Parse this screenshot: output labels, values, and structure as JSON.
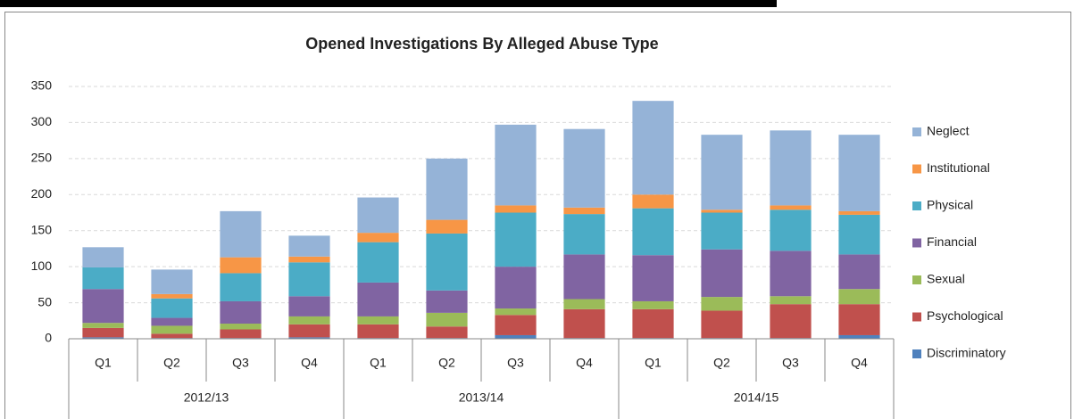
{
  "chart_data": {
    "type": "stacked-bar",
    "title": "Opened Investigations By Alleged  Abuse Type",
    "categories": [
      "Q1",
      "Q2",
      "Q3",
      "Q4",
      "Q1",
      "Q2",
      "Q3",
      "Q4",
      "Q1",
      "Q2",
      "Q3",
      "Q4"
    ],
    "groups": [
      "2012/13",
      "2013/14",
      "2014/15"
    ],
    "series": [
      {
        "name": "Discriminatory",
        "color": "#4f81bd",
        "values": [
          2,
          1,
          1,
          2,
          1,
          1,
          5,
          1,
          1,
          1,
          1,
          5
        ]
      },
      {
        "name": "Psychological",
        "color": "#c0504d",
        "values": [
          13,
          6,
          12,
          18,
          19,
          16,
          28,
          40,
          40,
          38,
          47,
          43
        ]
      },
      {
        "name": "Sexual",
        "color": "#9bbb59",
        "values": [
          7,
          11,
          8,
          11,
          11,
          19,
          9,
          14,
          11,
          19,
          11,
          21
        ]
      },
      {
        "name": "Financial",
        "color": "#8064a2",
        "values": [
          47,
          11,
          31,
          28,
          47,
          31,
          58,
          62,
          64,
          66,
          63,
          48
        ]
      },
      {
        "name": "Physical",
        "color": "#4bacc6",
        "values": [
          30,
          27,
          39,
          47,
          56,
          79,
          75,
          56,
          65,
          51,
          57,
          55
        ]
      },
      {
        "name": "Institutional",
        "color": "#f79646",
        "values": [
          0,
          6,
          22,
          8,
          13,
          19,
          10,
          9,
          19,
          4,
          6,
          5
        ]
      },
      {
        "name": "Neglect",
        "color": "#95b3d7",
        "values": [
          28,
          34,
          64,
          29,
          49,
          85,
          112,
          109,
          130,
          104,
          104,
          106
        ]
      }
    ],
    "ylim": [
      0,
      350
    ],
    "yticks": [
      0,
      50,
      100,
      150,
      200,
      250,
      300,
      350
    ],
    "grid": true,
    "legend": "right"
  }
}
